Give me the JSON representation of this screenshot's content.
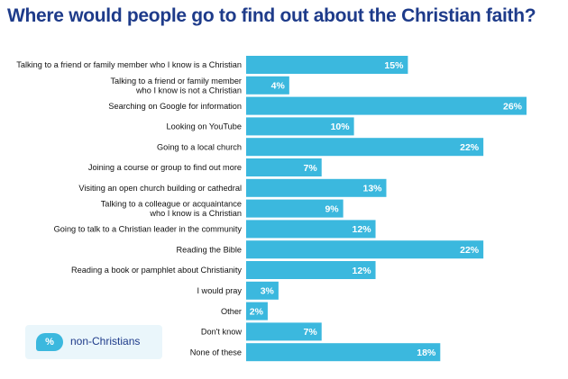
{
  "chart_data": {
    "type": "bar",
    "orientation": "horizontal",
    "title": "Where would people go to find out about the Christian faith?",
    "categories": [
      [
        "Talking to a friend or family member who I know is a Christian"
      ],
      [
        "Talking to a friend or family member",
        "who I know is not a Christian"
      ],
      [
        "Searching on Google for information"
      ],
      [
        "Looking on YouTube"
      ],
      [
        "Going to a local church"
      ],
      [
        "Joining a course or group to find out more"
      ],
      [
        "Visiting an open church building or cathedral"
      ],
      [
        "Talking to a colleague or acquaintance",
        "who I know is a Christian"
      ],
      [
        "Going to talk to a Christian leader in the community"
      ],
      [
        "Reading the Bible"
      ],
      [
        "Reading a book or pamphlet about Christianity"
      ],
      [
        "I would pray"
      ],
      [
        "Other"
      ],
      [
        "Don't know"
      ],
      [
        "None of these"
      ]
    ],
    "series": [
      {
        "name": "non-Christians",
        "values": [
          15,
          4,
          26,
          10,
          22,
          7,
          13,
          9,
          12,
          22,
          12,
          3,
          2,
          7,
          18
        ],
        "labels": [
          "15%",
          "4%",
          "26%",
          "10%",
          "22%",
          "7%",
          "13%",
          "9%",
          "12%",
          "22%",
          "12%",
          "3%",
          "2%",
          "7%",
          "18%"
        ],
        "color": "#3bb8de"
      }
    ],
    "xlim": [
      0,
      26
    ],
    "legend_position": "bottom-left"
  },
  "legend": {
    "badge_text": "%",
    "label": "non-Christians"
  },
  "colors": {
    "title": "#1e3b8a",
    "bar": "#3bb8de",
    "label_text": "#111111",
    "value_text": "#ffffff"
  }
}
